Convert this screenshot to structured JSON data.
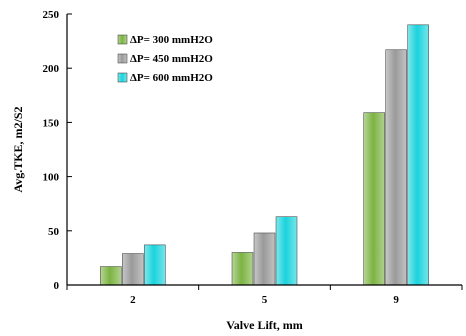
{
  "chart_data": {
    "type": "bar",
    "categories": [
      "2",
      "5",
      "9"
    ],
    "series": [
      {
        "name": "ΔP= 300 mmH2O",
        "values": [
          17,
          30,
          159
        ],
        "color": "#7cb342"
      },
      {
        "name": "ΔP= 450 mmH2O",
        "values": [
          29,
          48,
          217
        ],
        "color": "#9a9a9a"
      },
      {
        "name": "ΔP= 600 mmH2O",
        "values": [
          37,
          63,
          240
        ],
        "color": "#1ad3dc"
      }
    ],
    "title": "",
    "xlabel": "Valve Lift, mm",
    "ylabel": "Avg.TKE, m2/S2",
    "ylim": [
      0,
      250
    ],
    "yticks": [
      0,
      50,
      100,
      150,
      200,
      250
    ],
    "grid": false,
    "legend_position": "top-left"
  }
}
